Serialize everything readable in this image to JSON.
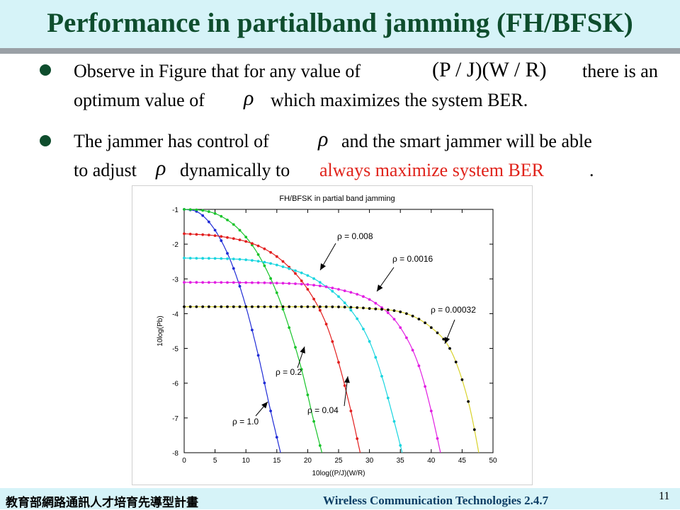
{
  "slide": {
    "title": "Performance in partialband jamming (FH/BFSK)",
    "bullet1_line1_a": "Observe in Figure that for any value of",
    "bullet1_math": "(P / J)(W / R)",
    "bullet1_line1_b": "there is an",
    "bullet1_line2_a": "optimum value of",
    "rho": "ρ",
    "bullet1_line2_b": "which maximizes  the system  BER.",
    "bullet2_line1_a": "The jammer has control of",
    "bullet2_line1_b": "and the smart  jammer will be able",
    "bullet2_line2_a": "to adjust",
    "bullet2_line2_b": "dynamically  to",
    "bullet2_line2_red": "always maximize  system  BER",
    "bullet2_line2_end": "."
  },
  "footer": {
    "left": "教育部網路通訊人才培育先導型計畫",
    "right": "Wireless Communication Technologies    2.4.7",
    "page": "11"
  },
  "chart_data": {
    "type": "line",
    "title": "FH/BFSK in partial band jamming",
    "xlabel": "10log((P/J)(W/R)",
    "ylabel": "10log(Pb)",
    "xlim": [
      0,
      50
    ],
    "ylim": [
      -8,
      -1
    ],
    "xticks": [
      "0",
      "5",
      "10",
      "15",
      "20",
      "25",
      "30",
      "35",
      "40",
      "45",
      "50"
    ],
    "yticks": [
      "-1",
      "-2",
      "-3",
      "-4",
      "-5",
      "-6",
      "-7",
      "-8"
    ],
    "grid": false,
    "series": [
      {
        "name": "ρ = 1.0",
        "color": "#1f2bd6",
        "x": [
          0,
          2,
          4,
          6,
          8,
          10,
          12,
          14,
          15.6
        ],
        "y": [
          -1.0,
          -1.06,
          -1.36,
          -1.9,
          -2.7,
          -3.8,
          -5.2,
          -6.8,
          -8.0
        ]
      },
      {
        "name": "ρ = 0.2",
        "color": "#18c42a",
        "x": [
          0,
          3,
          6,
          9,
          12,
          15,
          17,
          19,
          21,
          22.3
        ],
        "y": [
          -1.0,
          -1.03,
          -1.2,
          -1.6,
          -2.3,
          -3.4,
          -4.4,
          -5.6,
          -7.1,
          -8.0
        ]
      },
      {
        "name": "ρ = 0.04",
        "color": "#e21e1e",
        "x": [
          0,
          6,
          12,
          16,
          20,
          23,
          25,
          27,
          28.5
        ],
        "y": [
          -1.7,
          -1.78,
          -2.05,
          -2.5,
          -3.3,
          -4.3,
          -5.4,
          -6.8,
          -8.0
        ]
      },
      {
        "name": "ρ = 0.008",
        "color": "#19d5df",
        "x": [
          0,
          10,
          16,
          22,
          27,
          30,
          32,
          34,
          35.3
        ],
        "y": [
          -2.4,
          -2.45,
          -2.65,
          -3.1,
          -3.9,
          -4.8,
          -5.8,
          -7.1,
          -8.0
        ]
      },
      {
        "name": "ρ = 0.0016",
        "color": "#e21ee2",
        "x": [
          0,
          15,
          25,
          31,
          35,
          38,
          40,
          41.5
        ],
        "y": [
          -3.1,
          -3.12,
          -3.3,
          -3.7,
          -4.4,
          -5.5,
          -6.8,
          -8.0
        ]
      },
      {
        "name": "ρ = 0.00032",
        "color": "#000000",
        "line_color": "#d8d22a",
        "x": [
          0,
          20,
          30,
          36,
          40,
          43,
          45,
          46.5,
          47.7
        ],
        "y": [
          -3.8,
          -3.8,
          -3.85,
          -4.0,
          -4.4,
          -5.0,
          -5.9,
          -6.9,
          -8.0
        ]
      }
    ],
    "annotations": [
      {
        "text": "ρ = 0.008"
      },
      {
        "text": "ρ = 0.0016"
      },
      {
        "text": "ρ = 0.00032"
      },
      {
        "text": "ρ = 0.2"
      },
      {
        "text": "ρ = 0.04"
      },
      {
        "text": "ρ = 1.0"
      }
    ]
  }
}
